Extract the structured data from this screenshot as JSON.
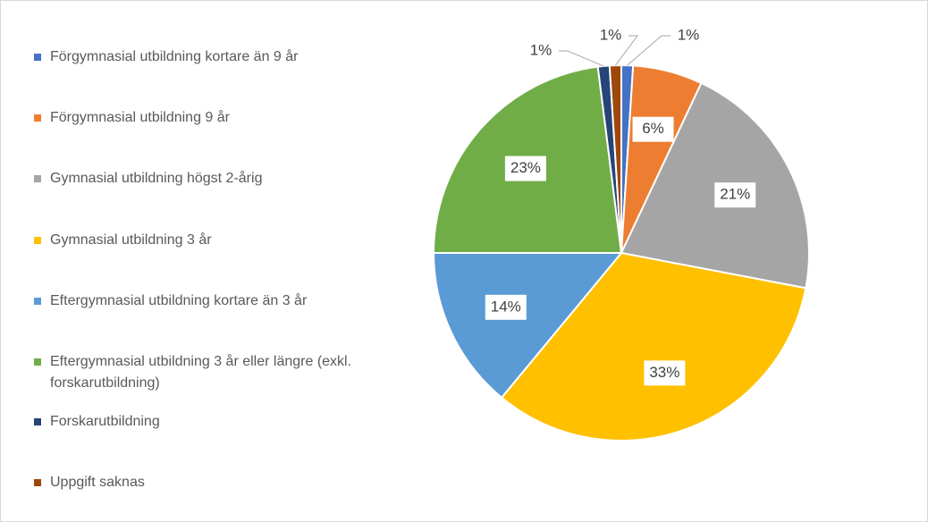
{
  "chart_data": {
    "type": "pie",
    "categories": [
      "Förgymnasial utbildning kortare än 9 år",
      "Förgymnasial utbildning 9 år",
      "Gymnasial utbildning högst 2-årig",
      "Gymnasial utbildning 3 år",
      "Eftergymnasial utbildning kortare än 3 år",
      "Eftergymnasial utbildning 3 år eller längre (exkl. forskarutbildning)",
      "Forskarutbildning",
      "Uppgift saknas"
    ],
    "values": [
      1,
      6,
      21,
      33,
      14,
      23,
      1,
      1
    ],
    "value_labels": [
      "1%",
      "6%",
      "21%",
      "33%",
      "14%",
      "23%",
      "1%",
      "1%"
    ],
    "colors": [
      "#4472c4",
      "#ed7d31",
      "#a5a5a5",
      "#ffc000",
      "#5b9bd5",
      "#70ad47",
      "#264478",
      "#9e480e"
    ],
    "legend": "left"
  }
}
